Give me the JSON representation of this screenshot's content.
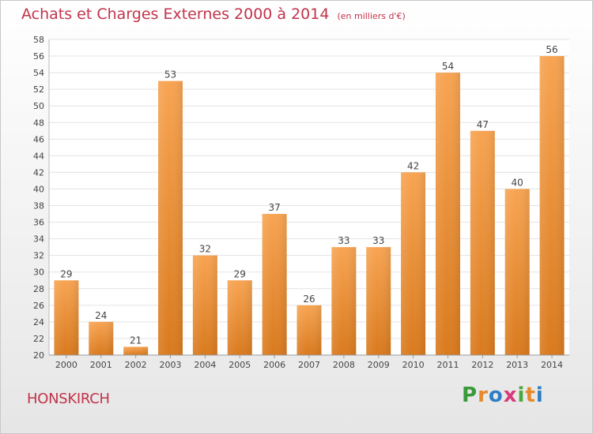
{
  "chart_data": {
    "type": "bar",
    "title": "Achats et Charges Externes 2000 à 2014",
    "subtitle": "(en milliers d'€)",
    "categories": [
      "2000",
      "2001",
      "2002",
      "2003",
      "2004",
      "2005",
      "2006",
      "2007",
      "2008",
      "2009",
      "2010",
      "2011",
      "2012",
      "2013",
      "2014"
    ],
    "values": [
      29,
      24,
      21,
      53,
      32,
      29,
      37,
      26,
      33,
      33,
      42,
      54,
      47,
      40,
      56
    ],
    "ylim": [
      20,
      58
    ],
    "ytick_step": 2,
    "grid": true,
    "bar_color": "#f0963e",
    "xlabel": "",
    "ylabel": ""
  },
  "footer": {
    "commune": "HONSKIRCH",
    "brand_letters": [
      "P",
      "r",
      "o",
      "x",
      "i",
      "t",
      "i"
    ],
    "brand_colors": [
      "#3a9a3a",
      "#e8892a",
      "#2d7ec4",
      "#d83a7a",
      "#4aa83c",
      "#e8892a",
      "#2d7ec4"
    ]
  }
}
